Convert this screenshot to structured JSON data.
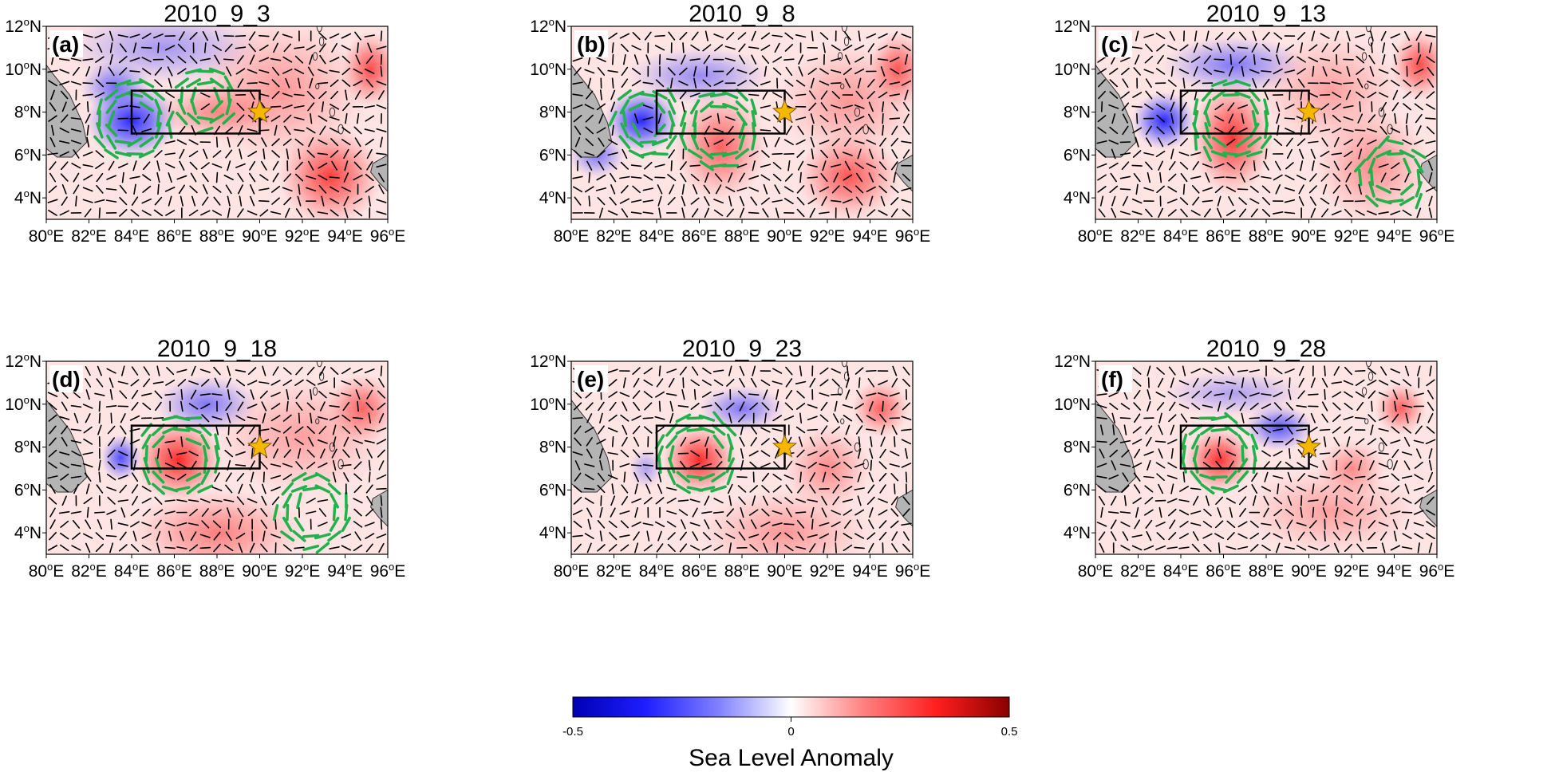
{
  "colorbar": {
    "min_label": "-0.5",
    "mid_label": "0",
    "max_label": "0.5",
    "title": "Sea Level Anomaly",
    "colors": [
      "#0000b4",
      "#1e1eff",
      "#8080ff",
      "#ffffff",
      "#ff8080",
      "#ff1e1e",
      "#8b0000"
    ]
  },
  "colors": {
    "land": "#b4b4b4",
    "arrow_strong": "#22b14c",
    "arrow_weak": "#000000",
    "star": "#f5b800",
    "box": "#000000"
  },
  "axes": {
    "lon_ticks": [
      80,
      82,
      84,
      86,
      88,
      90,
      92,
      94,
      96
    ],
    "lat_ticks": [
      4,
      6,
      8,
      10,
      12
    ],
    "lon_suffix": "E",
    "lat_suffix": "N",
    "degree_mark": "o",
    "lon_range": [
      80,
      96
    ],
    "lat_range": [
      3,
      12
    ]
  },
  "box_region": {
    "lon_min": 84,
    "lon_max": 90,
    "lat_min": 7,
    "lat_max": 9
  },
  "panels": [
    {
      "label": "(a)",
      "title": "2010_9_3",
      "star": {
        "lon": 90,
        "lat": 8
      },
      "blobs": [
        {
          "lon": 84,
          "lat": 7.6,
          "rlon": 1.6,
          "rlat": 1.3,
          "amp": -0.42
        },
        {
          "lon": 83.2,
          "lat": 9.2,
          "rlon": 1.2,
          "rlat": 0.9,
          "amp": -0.22
        },
        {
          "lon": 85.5,
          "lat": 11,
          "rlon": 3.5,
          "rlat": 1.3,
          "amp": -0.12
        },
        {
          "lon": 93.3,
          "lat": 5,
          "rlon": 1.8,
          "rlat": 1.7,
          "amp": 0.33
        },
        {
          "lon": 95.2,
          "lat": 10,
          "rlon": 1.0,
          "rlat": 1.3,
          "amp": 0.3
        },
        {
          "lon": 88,
          "lat": 8,
          "rlon": 2.2,
          "rlat": 1.0,
          "amp": 0.16
        },
        {
          "lon": 91,
          "lat": 9,
          "rlon": 3.0,
          "rlat": 2.5,
          "amp": 0.12
        }
      ],
      "eddies": [
        {
          "lon": 84,
          "lat": 7.6,
          "r": 1.4,
          "dir": -1
        },
        {
          "lon": 87.5,
          "lat": 8.6,
          "r": 1.0,
          "dir": 1
        }
      ]
    },
    {
      "label": "(b)",
      "title": "2010_9_8",
      "star": {
        "lon": 90,
        "lat": 8
      },
      "blobs": [
        {
          "lon": 83.3,
          "lat": 7.6,
          "rlon": 1.3,
          "rlat": 1.1,
          "amp": -0.45
        },
        {
          "lon": 81.2,
          "lat": 6,
          "rlon": 1.0,
          "rlat": 0.8,
          "amp": -0.2
        },
        {
          "lon": 86,
          "lat": 9.7,
          "rlon": 2.5,
          "rlat": 1.0,
          "amp": -0.15
        },
        {
          "lon": 87,
          "lat": 6.4,
          "rlon": 1.6,
          "rlat": 1.9,
          "amp": 0.25
        },
        {
          "lon": 93,
          "lat": 5,
          "rlon": 1.8,
          "rlat": 1.5,
          "amp": 0.28
        },
        {
          "lon": 95.3,
          "lat": 10,
          "rlon": 1.0,
          "rlat": 1.3,
          "amp": 0.28
        },
        {
          "lon": 93,
          "lat": 8.5,
          "rlon": 2.5,
          "rlat": 2.0,
          "amp": 0.12
        }
      ],
      "eddies": [
        {
          "lon": 83.6,
          "lat": 7.6,
          "r": 1.2,
          "dir": -1
        },
        {
          "lon": 87,
          "lat": 7.2,
          "r": 1.4,
          "dir": 1
        }
      ]
    },
    {
      "label": "(c)",
      "title": "2010_9_13",
      "star": {
        "lon": 90,
        "lat": 8
      },
      "blobs": [
        {
          "lon": 83.2,
          "lat": 7.6,
          "rlon": 1.1,
          "rlat": 1.0,
          "amp": -0.4
        },
        {
          "lon": 86.5,
          "lat": 10.2,
          "rlon": 2.5,
          "rlat": 1.0,
          "amp": -0.2
        },
        {
          "lon": 86.4,
          "lat": 6.8,
          "rlon": 1.4,
          "rlat": 2.0,
          "amp": 0.35
        },
        {
          "lon": 95.2,
          "lat": 10.2,
          "rlon": 1.0,
          "rlat": 1.2,
          "amp": 0.3
        },
        {
          "lon": 93,
          "lat": 5.5,
          "rlon": 2.0,
          "rlat": 2.0,
          "amp": 0.15
        },
        {
          "lon": 91,
          "lat": 9,
          "rlon": 2.5,
          "rlat": 2.0,
          "amp": 0.1
        }
      ],
      "eddies": [
        {
          "lon": 86.4,
          "lat": 7.6,
          "r": 1.5,
          "dir": 1
        },
        {
          "lon": 94,
          "lat": 5,
          "r": 1.2,
          "dir": -1
        }
      ]
    },
    {
      "label": "(d)",
      "title": "2010_9_18",
      "star": {
        "lon": 90,
        "lat": 8
      },
      "blobs": [
        {
          "lon": 86.2,
          "lat": 7.4,
          "rlon": 1.5,
          "rlat": 1.4,
          "amp": 0.46
        },
        {
          "lon": 83.5,
          "lat": 7.5,
          "rlon": 0.7,
          "rlat": 0.8,
          "amp": -0.3
        },
        {
          "lon": 87.5,
          "lat": 10,
          "rlon": 1.8,
          "rlat": 1.0,
          "amp": -0.2
        },
        {
          "lon": 94.8,
          "lat": 9.8,
          "rlon": 1.2,
          "rlat": 1.2,
          "amp": 0.25
        },
        {
          "lon": 88,
          "lat": 4,
          "rlon": 3.0,
          "rlat": 1.5,
          "amp": 0.18
        },
        {
          "lon": 92,
          "lat": 8.5,
          "rlon": 3.0,
          "rlat": 2.0,
          "amp": 0.1
        }
      ],
      "eddies": [
        {
          "lon": 86.2,
          "lat": 7.5,
          "r": 1.5,
          "dir": 1
        },
        {
          "lon": 92.5,
          "lat": 5,
          "r": 1.3,
          "dir": 1
        }
      ]
    },
    {
      "label": "(e)",
      "title": "2010_9_23",
      "star": {
        "lon": 90,
        "lat": 8
      },
      "blobs": [
        {
          "lon": 86,
          "lat": 7.4,
          "rlon": 1.3,
          "rlat": 1.2,
          "amp": 0.42
        },
        {
          "lon": 88,
          "lat": 9.8,
          "rlon": 1.5,
          "rlat": 0.8,
          "amp": -0.2
        },
        {
          "lon": 83.5,
          "lat": 7,
          "rlon": 0.6,
          "rlat": 0.7,
          "amp": -0.1
        },
        {
          "lon": 94.5,
          "lat": 9.8,
          "rlon": 1.0,
          "rlat": 1.0,
          "amp": 0.25
        },
        {
          "lon": 92,
          "lat": 7,
          "rlon": 1.5,
          "rlat": 1.5,
          "amp": 0.15
        },
        {
          "lon": 90,
          "lat": 4,
          "rlon": 3.0,
          "rlat": 1.5,
          "amp": 0.12
        }
      ],
      "eddies": [
        {
          "lon": 86,
          "lat": 7.6,
          "r": 1.5,
          "dir": 1
        }
      ]
    },
    {
      "label": "(f)",
      "title": "2010_9_28",
      "star": {
        "lon": 90,
        "lat": 8
      },
      "blobs": [
        {
          "lon": 85.8,
          "lat": 7.4,
          "rlon": 1.2,
          "rlat": 1.1,
          "amp": 0.36
        },
        {
          "lon": 88.6,
          "lat": 8.9,
          "rlon": 1.2,
          "rlat": 0.8,
          "amp": -0.28
        },
        {
          "lon": 86.5,
          "lat": 10.5,
          "rlon": 2.5,
          "rlat": 0.8,
          "amp": -0.1
        },
        {
          "lon": 94.3,
          "lat": 9.8,
          "rlon": 0.9,
          "rlat": 0.9,
          "amp": 0.25
        },
        {
          "lon": 92,
          "lat": 7,
          "rlon": 1.2,
          "rlat": 1.0,
          "amp": 0.15
        },
        {
          "lon": 91,
          "lat": 5,
          "rlon": 3.0,
          "rlat": 1.5,
          "amp": 0.1
        }
      ],
      "eddies": [
        {
          "lon": 85.8,
          "lat": 7.6,
          "r": 1.4,
          "dir": 1
        }
      ]
    }
  ]
}
